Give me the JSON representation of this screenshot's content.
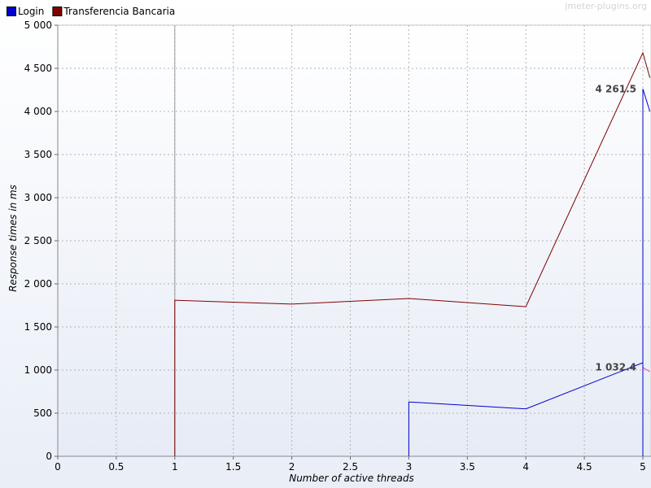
{
  "watermark": "jmeter-plugins.org",
  "chart_data": {
    "type": "line",
    "title": "",
    "xlabel": "Number of active threads",
    "ylabel": "Response times in ms",
    "xlim": [
      0,
      5
    ],
    "ylim": [
      0,
      5000
    ],
    "x_ticks": [
      0,
      0.5,
      1,
      1.5,
      2,
      2.5,
      3,
      3.5,
      4,
      4.5,
      5
    ],
    "x_tick_labels": [
      "0",
      "0.5",
      "1",
      "1.5",
      "2",
      "2.5",
      "3",
      "3.5",
      "4",
      "4.5",
      "5"
    ],
    "y_ticks": [
      0,
      500,
      1000,
      1500,
      2000,
      2500,
      3000,
      3500,
      4000,
      4500,
      5000
    ],
    "y_tick_labels": [
      "0",
      "500",
      "1 000",
      "1 500",
      "2 000",
      "2 500",
      "3 000",
      "3 500",
      "4 000",
      "4 500",
      "5 000"
    ],
    "grid": true,
    "legend_position": "top-left",
    "series": [
      {
        "name": "Login",
        "color": "#0000cc",
        "points": [
          [
            3,
            0
          ],
          [
            3,
            630
          ],
          [
            4,
            550
          ],
          [
            5,
            1085
          ],
          [
            5,
            0
          ],
          [
            5,
            4261.5
          ],
          [
            5.06,
            4000
          ]
        ]
      },
      {
        "name": "Transferencia Bancaria",
        "color": "#800000",
        "points": [
          [
            1,
            0
          ],
          [
            1,
            1810
          ],
          [
            2,
            1765
          ],
          [
            3,
            1830
          ],
          [
            4,
            1735
          ],
          [
            5,
            4680
          ],
          [
            5.06,
            4390
          ]
        ]
      }
    ],
    "extra_lines": [
      {
        "color": "#ff33cc",
        "points": [
          [
            5,
            1030
          ],
          [
            5.06,
            980
          ]
        ]
      },
      {
        "color": "#999999",
        "points": [
          [
            1,
            5000
          ],
          [
            1,
            0
          ]
        ]
      }
    ],
    "annotations": [
      {
        "text": "4 261.5",
        "x": 5,
        "y": 4261.5
      },
      {
        "text": "1 032.4",
        "x": 5,
        "y": 1032.4
      }
    ]
  }
}
